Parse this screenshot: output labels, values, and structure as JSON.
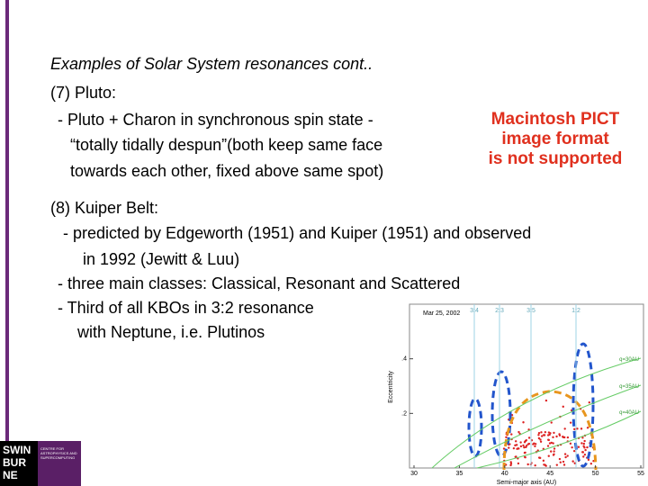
{
  "slide": {
    "title": "Examples of Solar System resonances  cont..",
    "lines": [
      "(7) Pluto:",
      "- Pluto + Charon in synchronous spin state -",
      "“totally tidally despun”(both keep same face",
      "towards each other, fixed above same spot)",
      "(8) Kuiper Belt:",
      "- predicted by Edgeworth (1951) and Kuiper (1951) and observed",
      "in 1992 (Jewitt & Luu)",
      "- three main classes: Classical, Resonant and Scattered",
      "- Third of all KBOs in 3:2 resonance",
      "with Neptune, i.e. Plutinos"
    ],
    "placeholder": [
      "Macintosh PICT",
      "image format",
      "is not supported"
    ]
  },
  "figure": {
    "date": "Mar 25, 2002",
    "resonances": [
      "3:4",
      "2:3",
      "3:5",
      "1:2"
    ],
    "curves": [
      "q=30AU",
      "q=35AU",
      "q=40AU"
    ],
    "xlabel": "Semi-major axis (AU)",
    "ylabel": "Eccentricity",
    "xticks": [
      30,
      35,
      40,
      45,
      50,
      55
    ],
    "yticks": [
      {
        "value": 0.2,
        "label": ".2"
      },
      {
        "value": 0.4,
        "label": ".4"
      }
    ]
  },
  "logo": {
    "name": [
      "SWIN",
      "BUR",
      "NE"
    ],
    "centre": "CENTRE FOR ASTROPHYSICS AND SUPERCOMPUTING"
  }
}
